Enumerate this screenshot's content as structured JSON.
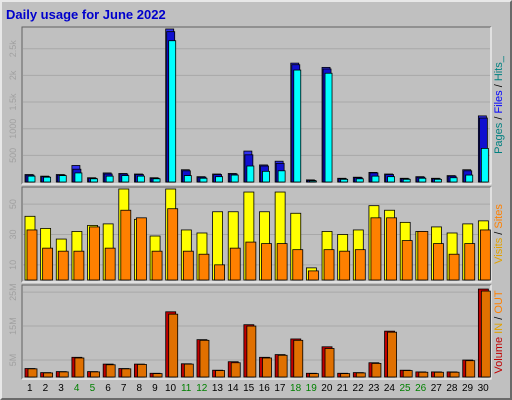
{
  "title": "Daily usage for June 2022",
  "colors": {
    "pages": "#3030f0",
    "files": "#1010d0",
    "hits": "#00ffff",
    "visits": "#ffff00",
    "sites": "#ff8000",
    "in": "#ffff00",
    "out": "#e07000",
    "volume": "#c00000",
    "weekday_label": "#000000",
    "weekend_label": "#008000"
  },
  "side_labels": {
    "top": [
      {
        "text": "Pages",
        "color": "#008080"
      },
      {
        "text": " / ",
        "color": "#000000"
      },
      {
        "text": "Files",
        "color": "#0000ff"
      },
      {
        "text": " / ",
        "color": "#000000"
      },
      {
        "text": "Hits_",
        "color": "#008080"
      }
    ],
    "middle": [
      {
        "text": "Visits",
        "color": "#e0a000"
      },
      {
        "text": " / ",
        "color": "#000000"
      },
      {
        "text": "Sites",
        "color": "#ff8000"
      }
    ],
    "bottom": [
      {
        "text": "Volume",
        "color": "#c00000"
      },
      {
        "text": " IN",
        "color": "#e0a000"
      },
      {
        "text": " / ",
        "color": "#000000"
      },
      {
        "text": "OUT",
        "color": "#ff8000"
      }
    ]
  },
  "chart_data": [
    {
      "type": "bar",
      "panel": "hits",
      "categories": [
        "1",
        "2",
        "3",
        "4",
        "5",
        "6",
        "7",
        "8",
        "9",
        "10",
        "11",
        "12",
        "13",
        "14",
        "15",
        "16",
        "17",
        "18",
        "19",
        "20",
        "21",
        "22",
        "23",
        "24",
        "25",
        "26",
        "27",
        "28",
        "29",
        "30"
      ],
      "weekend": [
        "4",
        "5",
        "11",
        "12",
        "18",
        "19",
        "25",
        "26"
      ],
      "ylim": [
        0,
        2870
      ],
      "ticks": [
        {
          "v": 500,
          "label": "500"
        },
        {
          "v": 1000,
          "label": "1000"
        },
        {
          "v": 1500,
          "label": "1.5k"
        },
        {
          "v": 2000,
          "label": "2k"
        },
        {
          "v": 2500,
          "label": "2.5k"
        }
      ],
      "series": [
        {
          "name": "Pages",
          "values": [
            140,
            110,
            140,
            310,
            80,
            170,
            160,
            150,
            80,
            2870,
            230,
            100,
            150,
            160,
            580,
            320,
            390,
            2230,
            40,
            2150,
            70,
            90,
            180,
            150,
            70,
            100,
            70,
            120,
            230,
            1240
          ]
        },
        {
          "name": "Files",
          "values": [
            130,
            100,
            130,
            240,
            70,
            150,
            150,
            140,
            70,
            2820,
            210,
            90,
            140,
            150,
            510,
            300,
            350,
            2200,
            30,
            2120,
            60,
            80,
            170,
            140,
            60,
            90,
            60,
            110,
            210,
            1200
          ]
        },
        {
          "name": "Hits",
          "values": [
            110,
            90,
            120,
            170,
            60,
            110,
            120,
            110,
            60,
            2650,
            120,
            70,
            100,
            130,
            300,
            200,
            210,
            2100,
            20,
            2040,
            50,
            60,
            110,
            100,
            50,
            70,
            50,
            80,
            130,
            630
          ]
        }
      ]
    },
    {
      "type": "bar",
      "panel": "visits",
      "categories": [
        "1",
        "2",
        "3",
        "4",
        "5",
        "6",
        "7",
        "8",
        "9",
        "10",
        "11",
        "12",
        "13",
        "14",
        "15",
        "16",
        "17",
        "18",
        "19",
        "20",
        "21",
        "22",
        "23",
        "24",
        "25",
        "26",
        "27",
        "28",
        "29",
        "30"
      ],
      "ylim": [
        0,
        60
      ],
      "ticks": [
        {
          "v": 10,
          "label": "10"
        },
        {
          "v": 30,
          "label": "30"
        },
        {
          "v": 50,
          "label": "50"
        }
      ],
      "series": [
        {
          "name": "Visits",
          "values": [
            42,
            34,
            27,
            32,
            36,
            37,
            60,
            40,
            29,
            60,
            33,
            31,
            45,
            45,
            58,
            45,
            58,
            44,
            8,
            32,
            30,
            33,
            49,
            46,
            38,
            32,
            35,
            31,
            37,
            39
          ]
        },
        {
          "name": "Sites",
          "values": [
            33,
            21,
            19,
            19,
            35,
            21,
            46,
            41,
            19,
            47,
            19,
            17,
            10,
            21,
            25,
            24,
            24,
            20,
            6,
            20,
            19,
            20,
            41,
            41,
            26,
            32,
            24,
            17,
            24,
            33
          ]
        }
      ]
    },
    {
      "type": "bar",
      "panel": "volume",
      "categories": [
        "1",
        "2",
        "3",
        "4",
        "5",
        "6",
        "7",
        "8",
        "9",
        "10",
        "11",
        "12",
        "13",
        "14",
        "15",
        "16",
        "17",
        "18",
        "19",
        "20",
        "21",
        "22",
        "23",
        "24",
        "25",
        "26",
        "27",
        "28",
        "29",
        "30"
      ],
      "ylim": [
        0,
        2650
      ],
      "ticks": [
        {
          "v": 500,
          "label": "5M"
        },
        {
          "v": 1500,
          "label": "15M"
        },
        {
          "v": 2500,
          "label": "25M"
        }
      ],
      "series": [
        {
          "name": "Volume",
          "values": [
            250,
            130,
            160,
            580,
            160,
            380,
            250,
            380,
            110,
            1920,
            390,
            1100,
            200,
            450,
            1540,
            580,
            660,
            1120,
            110,
            890,
            110,
            130,
            420,
            1350,
            200,
            150,
            150,
            150,
            500,
            2590
          ]
        },
        {
          "name": "IN",
          "values": [
            0,
            0,
            0,
            0,
            0,
            0,
            0,
            0,
            0,
            0,
            0,
            0,
            0,
            0,
            0,
            0,
            0,
            0,
            0,
            0,
            0,
            0,
            0,
            0,
            0,
            0,
            0,
            0,
            0,
            0
          ]
        },
        {
          "name": "OUT",
          "values": [
            240,
            120,
            150,
            560,
            150,
            360,
            240,
            370,
            100,
            1850,
            380,
            1080,
            190,
            420,
            1500,
            560,
            640,
            1080,
            100,
            840,
            100,
            120,
            400,
            1320,
            190,
            140,
            140,
            140,
            480,
            2530
          ]
        }
      ]
    }
  ]
}
